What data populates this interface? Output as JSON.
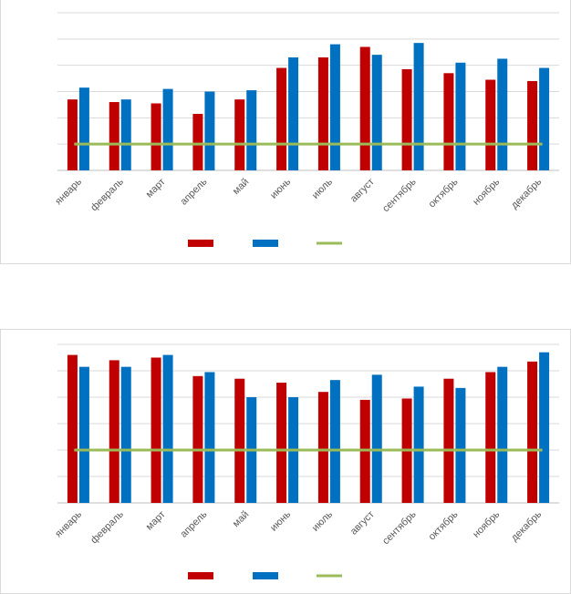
{
  "colors": {
    "series_red": "#c00000",
    "series_blue": "#0070c0",
    "threshold_green": "#9bbb59",
    "gridline": "#d9d9d9",
    "axis": "#bfbfbf",
    "tick_text": "#595959"
  },
  "chart_data": [
    {
      "type": "bar",
      "categories": [
        "январь",
        "февраль",
        "март",
        "апрель",
        "май",
        "июнь",
        "июль",
        "август",
        "сентябрь",
        "октябрь",
        "ноябрь",
        "декабрь"
      ],
      "series": [
        {
          "color": "#c00000",
          "values": [
            2.7,
            2.6,
            2.55,
            2.15,
            2.7,
            3.9,
            4.3,
            4.7,
            3.85,
            3.7,
            3.45,
            3.4
          ]
        },
        {
          "color": "#0070c0",
          "values": [
            3.15,
            2.7,
            3.1,
            3.0,
            3.05,
            4.3,
            4.8,
            4.4,
            4.85,
            4.1,
            4.25,
            3.9
          ]
        }
      ],
      "reference_line": {
        "type": "line",
        "color": "#9bbb59",
        "value": 1.0
      },
      "ylim": [
        0,
        6
      ],
      "gridlines": 6,
      "grid": true,
      "y_tick_labels": false,
      "legend": {
        "placement": "bottom",
        "entries": 3
      }
    },
    {
      "type": "bar",
      "categories": [
        "январь",
        "февраль",
        "март",
        "апрель",
        "май",
        "июнь",
        "июль",
        "август",
        "сентябрь",
        "октябрь",
        "ноябрь",
        "декабрь"
      ],
      "series": [
        {
          "color": "#c00000",
          "values": [
            5.6,
            5.4,
            5.5,
            4.8,
            4.7,
            4.55,
            4.2,
            3.9,
            3.95,
            4.7,
            4.95,
            5.35
          ]
        },
        {
          "color": "#0070c0",
          "values": [
            5.15,
            5.15,
            5.6,
            4.95,
            4.0,
            4.0,
            4.65,
            4.85,
            4.4,
            4.35,
            5.15,
            5.7
          ]
        }
      ],
      "reference_line": {
        "type": "line",
        "color": "#9bbb59",
        "value": 2.0
      },
      "ylim": [
        0,
        6
      ],
      "gridlines": 6,
      "grid": true,
      "y_tick_labels": false,
      "legend": {
        "placement": "bottom",
        "entries": 3
      }
    }
  ]
}
